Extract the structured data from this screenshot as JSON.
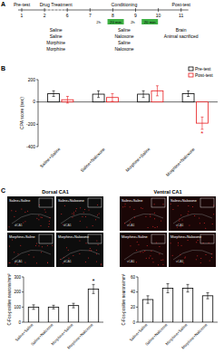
{
  "panel_labels": [
    "A",
    "B",
    "C"
  ],
  "timeline": {
    "phases": [
      "Pre-test",
      "Drug Treatment",
      "Conditioning",
      "Post-test"
    ],
    "days": [
      "1",
      "2",
      "6",
      "7",
      "8",
      "9",
      "10",
      "11"
    ],
    "intervals": [
      "2h",
      "20 min",
      "2h",
      "20 min"
    ],
    "treatment": [
      "Saline",
      "Saline",
      "Morphine",
      "Morphine"
    ],
    "conditioning": [
      "Saline",
      "Naloxone",
      "Saline",
      "Naloxone"
    ],
    "endpoint": [
      "Brain",
      "Animal sacrificed"
    ]
  },
  "images": [
    {
      "title": "Dorsal CA1",
      "region_label": "dCA1",
      "labels": [
        "Saline+Saline",
        "Saline+Naloxone",
        "Morphine+Saline",
        "Morphine+Naloxone"
      ]
    },
    {
      "title": "Ventral CA1",
      "region_label": "vCA1",
      "labels": [
        "Saline+Saline",
        "Saline+Naloxone",
        "Morphine+Saline",
        "Morphine+Naloxone"
      ]
    }
  ],
  "chart_data": [
    {
      "type": "bar",
      "y_label": "CPA score (sec)",
      "categories": [
        "Saline+Saline",
        "Saline+Naloxone",
        "Morphine+Saline",
        "Morphine+Naloxone"
      ],
      "series": [
        {
          "name": "Pre-test",
          "color": "#000000",
          "values": [
            75,
            70,
            70,
            75
          ],
          "errors": [
            25,
            30,
            30,
            25
          ]
        },
        {
          "name": "Post-test",
          "color": "#e8191c",
          "values": [
            20,
            40,
            100,
            -190
          ],
          "errors": [
            30,
            35,
            45,
            55
          ]
        }
      ],
      "ylim": [
        -400,
        200
      ],
      "yticks": [
        -400,
        -200,
        0,
        200
      ],
      "legend": "top-right",
      "annotations": [
        {
          "text": "*",
          "series": "Post-test",
          "category": "Morphine+Naloxone"
        }
      ]
    },
    {
      "type": "bar",
      "y_label": "C-Fos-positive neurons/mm²",
      "categories": [
        "Saline+Saline",
        "Saline+Naloxone",
        "Morphine+Saline",
        "Morphine+Naloxone"
      ],
      "color": "#000000",
      "values": [
        100,
        100,
        110,
        220
      ],
      "errors": [
        15,
        12,
        15,
        30
      ],
      "ylim": [
        0,
        300
      ],
      "yticks": [
        0,
        100,
        200,
        300
      ],
      "annotations": [
        {
          "text": "*",
          "category": "Morphine+Naloxone"
        }
      ]
    },
    {
      "type": "bar",
      "y_label": "C-Fos-positive neurons/mm²",
      "categories": [
        "Saline+Saline",
        "Saline+Naloxone",
        "Morphine+Saline",
        "Morphine+Naloxone"
      ],
      "color": "#000000",
      "values": [
        30,
        45,
        45,
        35
      ],
      "errors": [
        5,
        6,
        5,
        4
      ],
      "ylim": [
        0,
        60
      ],
      "yticks": [
        0,
        20,
        40,
        60
      ]
    }
  ]
}
